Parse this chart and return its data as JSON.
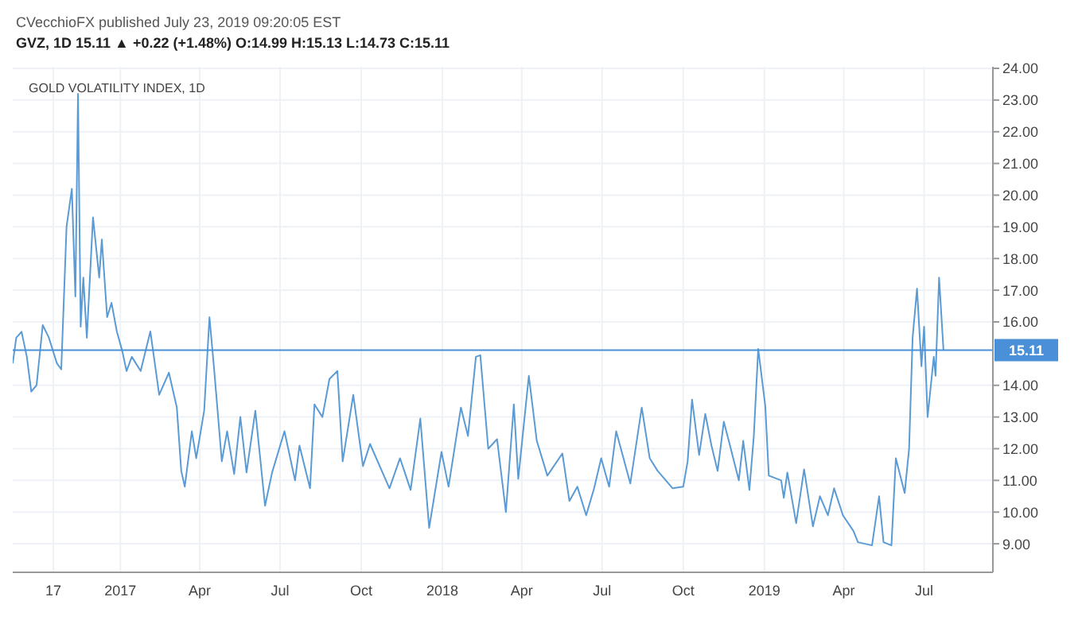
{
  "chart_data": {
    "type": "line",
    "title": "GOLD VOLATILITY INDEX, 1D",
    "annotations": [
      "CVecchioFX published July 23, 2019 09:20:05 EST",
      "GVZ, 1D 15.11 ▲ +0.22 (+1.48%) O:14.99 H:15.13 L:14.73 C:15.11"
    ],
    "x": [
      "2016-09-01",
      "2016-09-05",
      "2016-09-11",
      "2016-09-17",
      "2016-09-22",
      "2016-09-28",
      "2016-10-05",
      "2016-10-12",
      "2016-10-21",
      "2016-10-26",
      "2016-11-01",
      "2016-11-07",
      "2016-11-11",
      "2016-11-14",
      "2016-11-17",
      "2016-11-20",
      "2016-11-24",
      "2016-12-01",
      "2016-12-08",
      "2016-12-11",
      "2016-12-17",
      "2016-12-22",
      "2016-12-28",
      "2017-01-03",
      "2017-01-08",
      "2017-01-14",
      "2017-01-24",
      "2017-02-04",
      "2017-02-14",
      "2017-02-25",
      "2017-03-06",
      "2017-03-11",
      "2017-03-15",
      "2017-03-23",
      "2017-03-28",
      "2017-04-06",
      "2017-04-12",
      "2017-04-17",
      "2017-04-26",
      "2017-05-02",
      "2017-05-10",
      "2017-05-17",
      "2017-05-24",
      "2017-06-03",
      "2017-06-14",
      "2017-06-22",
      "2017-07-06",
      "2017-07-18",
      "2017-07-23",
      "2017-08-04",
      "2017-08-09",
      "2017-08-18",
      "2017-08-26",
      "2017-09-04",
      "2017-09-10",
      "2017-09-22",
      "2017-10-03",
      "2017-10-11",
      "2017-11-02",
      "2017-11-14",
      "2017-11-26",
      "2017-12-07",
      "2017-12-17",
      "2017-12-31",
      "2018-01-08",
      "2018-01-22",
      "2018-01-30",
      "2018-02-08",
      "2018-02-13",
      "2018-02-22",
      "2018-03-04",
      "2018-03-14",
      "2018-03-23",
      "2018-03-28",
      "2018-04-09",
      "2018-04-18",
      "2018-04-30",
      "2018-05-17",
      "2018-05-25",
      "2018-06-03",
      "2018-06-13",
      "2018-06-22",
      "2018-06-30",
      "2018-07-09",
      "2018-07-17",
      "2018-08-02",
      "2018-08-15",
      "2018-08-24",
      "2018-09-02",
      "2018-09-19",
      "2018-10-01",
      "2018-10-06",
      "2018-10-11",
      "2018-10-19",
      "2018-10-26",
      "2018-11-02",
      "2018-11-09",
      "2018-11-16",
      "2018-11-23",
      "2018-12-03",
      "2018-12-08",
      "2018-12-15",
      "2018-12-20",
      "2018-12-25",
      "2019-01-02",
      "2019-01-06",
      "2019-01-20",
      "2019-01-23",
      "2019-01-27",
      "2019-02-06",
      "2019-02-15",
      "2019-02-25",
      "2019-03-05",
      "2019-03-14",
      "2019-03-21",
      "2019-03-31",
      "2019-04-12",
      "2019-04-17",
      "2019-05-03",
      "2019-05-11",
      "2019-05-16",
      "2019-05-25",
      "2019-05-30",
      "2019-06-09",
      "2019-06-14",
      "2019-06-18",
      "2019-06-23",
      "2019-06-28",
      "2019-07-01",
      "2019-07-05",
      "2019-07-12",
      "2019-07-14",
      "2019-07-18",
      "2019-07-23"
    ],
    "series": [
      {
        "color": "#5b9bd5",
        "values": [
          14.69,
          15.5,
          15.69,
          14.9,
          13.8,
          14.0,
          15.9,
          15.5,
          14.7,
          14.5,
          19.0,
          20.2,
          16.8,
          23.2,
          15.85,
          17.4,
          15.5,
          19.3,
          17.4,
          18.6,
          16.15,
          16.6,
          15.7,
          15.1,
          14.45,
          14.9,
          14.45,
          15.7,
          13.7,
          14.4,
          13.3,
          11.3,
          10.8,
          12.55,
          11.7,
          13.2,
          16.15,
          14.6,
          11.6,
          12.55,
          11.2,
          13.0,
          11.25,
          13.2,
          10.2,
          11.25,
          12.55,
          11.0,
          12.1,
          10.75,
          13.4,
          13.0,
          14.2,
          14.45,
          11.6,
          13.7,
          11.45,
          12.15,
          10.75,
          11.7,
          10.7,
          12.95,
          9.5,
          11.9,
          10.8,
          13.3,
          12.4,
          14.9,
          14.95,
          12.0,
          12.3,
          10.0,
          13.4,
          11.05,
          14.3,
          12.25,
          11.15,
          11.85,
          10.35,
          10.8,
          9.9,
          10.75,
          11.7,
          10.8,
          12.55,
          10.9,
          13.3,
          11.7,
          11.3,
          10.75,
          10.8,
          11.6,
          13.55,
          11.8,
          13.1,
          12.1,
          11.3,
          12.85,
          12.1,
          11.0,
          12.25,
          10.7,
          12.4,
          15.15,
          13.35,
          11.15,
          11.0,
          10.45,
          11.25,
          9.65,
          11.35,
          9.55,
          10.5,
          9.9,
          10.75,
          9.9,
          9.4,
          9.05,
          8.95,
          10.5,
          9.05,
          8.95,
          11.7,
          10.6,
          12.0,
          15.5,
          17.05,
          14.6,
          15.85,
          13.0,
          14.9,
          14.3,
          17.4,
          15.11
        ]
      }
    ],
    "xlim": [
      "2016-09-01",
      "2019-09-17"
    ],
    "xticks": [
      {
        "value": "2016-10-17",
        "label": "17"
      },
      {
        "value": "2017-01-01",
        "label": "2017"
      },
      {
        "value": "2017-04-01",
        "label": "Apr"
      },
      {
        "value": "2017-07-01",
        "label": "Jul"
      },
      {
        "value": "2017-10-01",
        "label": "Oct"
      },
      {
        "value": "2018-01-01",
        "label": "2018"
      },
      {
        "value": "2018-04-01",
        "label": "Apr"
      },
      {
        "value": "2018-07-01",
        "label": "Jul"
      },
      {
        "value": "2018-10-01",
        "label": "Oct"
      },
      {
        "value": "2019-01-01",
        "label": "2019"
      },
      {
        "value": "2019-04-01",
        "label": "Apr"
      },
      {
        "value": "2019-07-01",
        "label": "Jul"
      }
    ],
    "ylim": [
      8.1,
      24.05
    ],
    "yticks": [
      {
        "value": 9,
        "label": "9.00"
      },
      {
        "value": 10,
        "label": "10.00"
      },
      {
        "value": 11,
        "label": "11.00"
      },
      {
        "value": 12,
        "label": "12.00"
      },
      {
        "value": 13,
        "label": "13.00"
      },
      {
        "value": 14,
        "label": "14.00"
      },
      {
        "value": 16,
        "label": "16.00"
      },
      {
        "value": 17,
        "label": "17.00"
      },
      {
        "value": 18,
        "label": "18.00"
      },
      {
        "value": 19,
        "label": "19.00"
      },
      {
        "value": 20,
        "label": "20.00"
      },
      {
        "value": 21,
        "label": "21.00"
      },
      {
        "value": 22,
        "label": "22.00"
      },
      {
        "value": 23,
        "label": "23.00"
      },
      {
        "value": 24,
        "label": "24.00"
      }
    ],
    "ref_lines": [
      {
        "axis": "y",
        "value": 15.11,
        "label": "15.11",
        "color": "#4a90d9"
      }
    ],
    "grid": true,
    "marker": "none",
    "line_style": "solid"
  }
}
